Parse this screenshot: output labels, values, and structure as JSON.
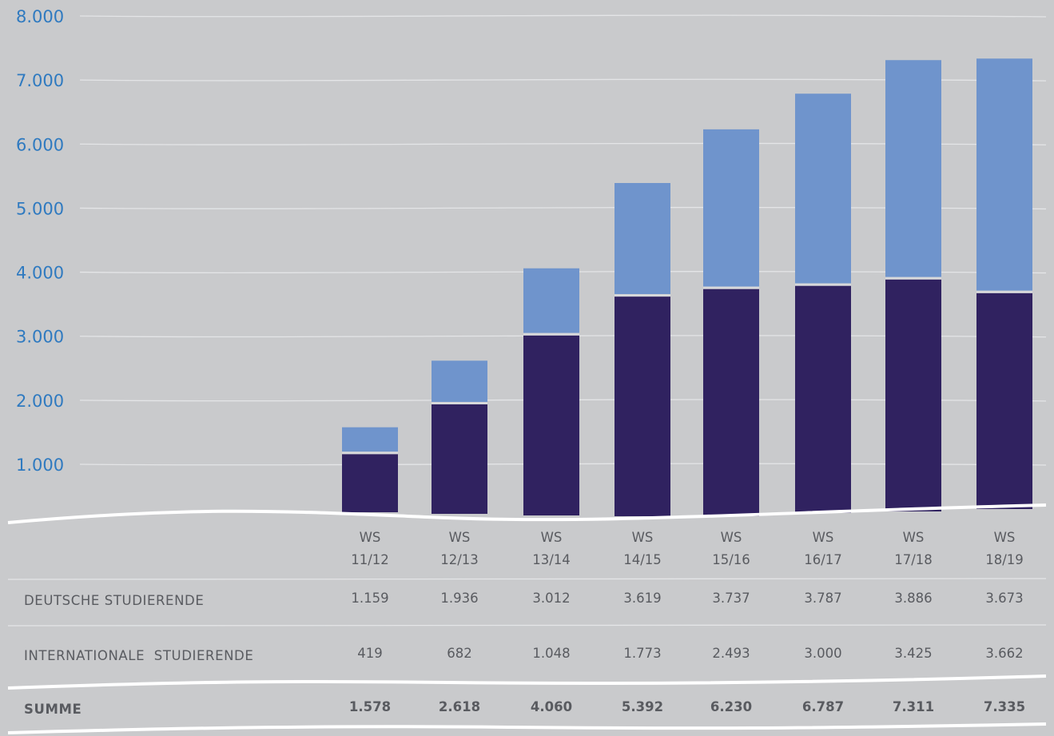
{
  "colors": {
    "background": "#c9cacc",
    "deutsche": "#302260",
    "international": "#6f94cc",
    "axis_text": "#2f7ac0",
    "table_text": "#595b60",
    "grid": "#e4e5e7"
  },
  "chart_data": {
    "type": "bar",
    "stacked": true,
    "categories": [
      "WS 11/12",
      "WS 12/13",
      "WS 13/14",
      "WS 14/15",
      "WS 15/16",
      "WS 16/17",
      "WS 17/18",
      "WS 18/19"
    ],
    "category_lines": [
      [
        "WS",
        "11/12"
      ],
      [
        "WS",
        "12/13"
      ],
      [
        "WS",
        "13/14"
      ],
      [
        "WS",
        "14/15"
      ],
      [
        "WS",
        "15/16"
      ],
      [
        "WS",
        "16/17"
      ],
      [
        "WS",
        "17/18"
      ],
      [
        "WS",
        "18/19"
      ]
    ],
    "series": [
      {
        "name": "DEUTSCHE STUDIERENDE",
        "values": [
          1159,
          1936,
          3012,
          3619,
          3737,
          3787,
          3886,
          3673
        ],
        "color": "#302260"
      },
      {
        "name": "INTERNATIONALE STUDIERENDE",
        "values": [
          419,
          682,
          1048,
          1773,
          2493,
          3000,
          3425,
          3662
        ],
        "color": "#6f94cc"
      }
    ],
    "totals_label": "SUMME",
    "totals": [
      1578,
      2618,
      4060,
      5392,
      6230,
      6787,
      7311,
      7335
    ],
    "yticks": [
      1000,
      2000,
      3000,
      4000,
      5000,
      6000,
      7000,
      8000
    ],
    "ytick_labels": [
      "1.000",
      "2.000",
      "3.000",
      "4.000",
      "5.000",
      "6.000",
      "7.000",
      "8.000"
    ],
    "ylim": [
      300,
      8000
    ],
    "grid": true,
    "title": "",
    "xlabel": "",
    "ylabel": ""
  },
  "table": {
    "rows": [
      {
        "label": "DEUTSCHE STUDIERENDE",
        "cells": [
          "1.159",
          "1.936",
          "3.012",
          "3.619",
          "3.737",
          "3.787",
          "3.886",
          "3.673"
        ]
      },
      {
        "label": "INTERNATIONALE  STUDIERENDE",
        "cells": [
          "419",
          "682",
          "1.048",
          "1.773",
          "2.493",
          "3.000",
          "3.425",
          "3.662"
        ]
      },
      {
        "label": "SUMME",
        "cells": [
          "1.578",
          "2.618",
          "4.060",
          "5.392",
          "6.230",
          "6.787",
          "7.311",
          "7.335"
        ]
      }
    ]
  }
}
